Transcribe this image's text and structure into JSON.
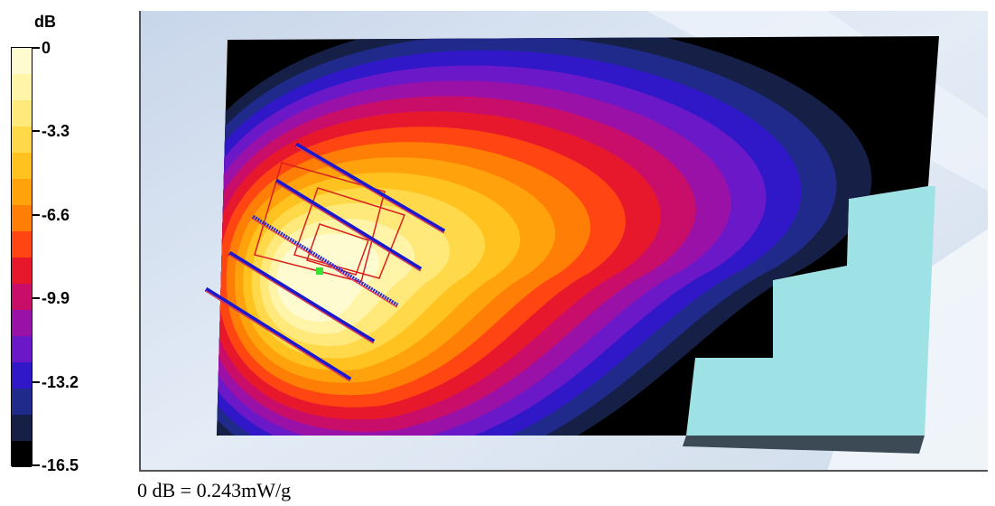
{
  "chart_data": {
    "type": "heatmap",
    "unit": "dB",
    "colorbar": {
      "max": 0,
      "min": -16.5,
      "tick_labels": [
        "0",
        "-3.3",
        "-6.6",
        "-9.9",
        "-13.2",
        "-16.5"
      ],
      "tick_values": [
        0,
        -3.3,
        -6.6,
        -9.9,
        -13.2,
        -16.5
      ],
      "levels": 15,
      "colors": [
        "#fffbd0",
        "#fff4a8",
        "#ffe97a",
        "#ffd94a",
        "#ffc21e",
        "#ffa20c",
        "#ff7f06",
        "#ff4512",
        "#e8182c",
        "#c90e6a",
        "#9a11a8",
        "#6a18c8",
        "#3018c8",
        "#1f2a8a",
        "#162046"
      ],
      "bottom_color": "#000000"
    },
    "peak_marker": "green-dot",
    "footnote": "0 dB = 0.243mW/g"
  }
}
